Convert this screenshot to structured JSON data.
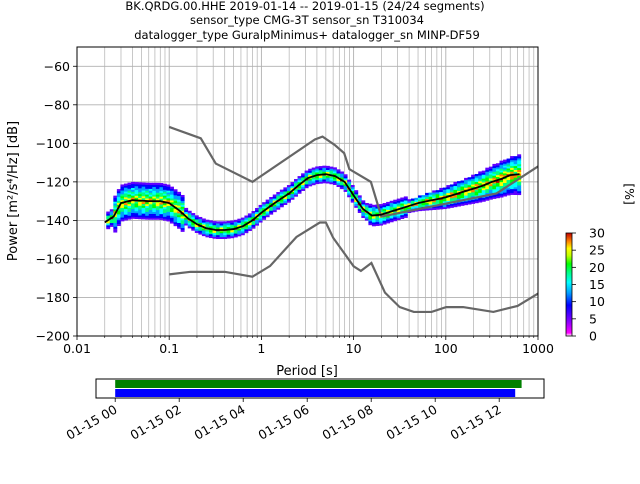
{
  "title_lines": [
    "BK.QRDG.00.HHE   2019-01-14 -- 2019-01-15  (24/24 segments)",
    "sensor_type CMG-3T sensor_sn T310034",
    "datalogger_type GuralpMinimus+ datalogger_sn MINP-DF59"
  ],
  "chart_data": {
    "type": "heatmap",
    "xlabel": "Period [s]",
    "ylabel": "Power [m²/s⁴/Hz] [dB]",
    "xscale": "log",
    "xlim": [
      0.01,
      1000
    ],
    "ylim": [
      -200,
      -50
    ],
    "x_ticks": [
      {
        "value": 0.01,
        "label": "0.01"
      },
      {
        "value": 0.1,
        "label": "0.1"
      },
      {
        "value": 1,
        "label": "1"
      },
      {
        "value": 10,
        "label": "10"
      },
      {
        "value": 100,
        "label": "100"
      },
      {
        "value": 1000,
        "label": "1000"
      }
    ],
    "y_ticks": [
      {
        "value": -60,
        "label": "−60"
      },
      {
        "value": -80,
        "label": "−80"
      },
      {
        "value": -100,
        "label": "−100"
      },
      {
        "value": -120,
        "label": "−120"
      },
      {
        "value": -140,
        "label": "−140"
      },
      {
        "value": -160,
        "label": "−160"
      },
      {
        "value": -180,
        "label": "−180"
      },
      {
        "value": -200,
        "label": "−200"
      }
    ],
    "grid": true,
    "noise_model_high": {
      "x": [
        0.1,
        0.22,
        0.32,
        0.8,
        3.8,
        4.6,
        6.3,
        7.9,
        9.0,
        15.4,
        20.0,
        354.8,
        1000
      ],
      "y": [
        -91.5,
        -97.4,
        -110.5,
        -120.0,
        -98.0,
        -96.5,
        -101.0,
        -105.1,
        -113.4,
        -120.0,
        -138.0,
        -126.0,
        -112.0
      ]
    },
    "noise_model_low": {
      "x": [
        0.1,
        0.17,
        0.4,
        0.8,
        1.24,
        2.4,
        4.3,
        5.0,
        6.0,
        10.0,
        12.0,
        15.6,
        21.9,
        31.6,
        45.0,
        70.0,
        101.0,
        154.0,
        328.0,
        600.0,
        1000.0
      ],
      "y": [
        -168.0,
        -166.7,
        -166.7,
        -169.2,
        -163.7,
        -148.6,
        -141.1,
        -141.1,
        -149.0,
        -163.8,
        -166.2,
        -162.1,
        -177.5,
        -185.0,
        -187.5,
        -187.5,
        -185.0,
        -185.0,
        -187.5,
        -184.4,
        -178.0
      ]
    },
    "mode_curve": {
      "x": [
        0.02,
        0.025,
        0.03,
        0.04,
        0.06,
        0.08,
        0.1,
        0.13,
        0.16,
        0.2,
        0.25,
        0.32,
        0.4,
        0.5,
        0.63,
        0.8,
        1.0,
        1.3,
        1.6,
        2.0,
        2.5,
        3.2,
        4.0,
        5.0,
        6.3,
        8.0,
        10.0,
        12.6,
        15.8,
        20.0,
        25.0,
        31.6,
        40.0,
        50.0,
        63.0,
        80.0,
        100.0,
        126.0,
        158.0,
        200.0,
        251.0,
        316.0,
        398.0,
        501.0,
        631.0
      ],
      "y": [
        -141.0,
        -138.0,
        -131.0,
        -129.5,
        -130.0,
        -130.0,
        -131.0,
        -135.0,
        -139.0,
        -142.0,
        -144.0,
        -145.0,
        -145.0,
        -144.5,
        -143.0,
        -140.0,
        -136.0,
        -132.0,
        -129.0,
        -126.0,
        -122.0,
        -118.0,
        -116.5,
        -116.0,
        -117.0,
        -120.0,
        -127.0,
        -134.0,
        -137.5,
        -137.0,
        -135.5,
        -134.0,
        -132.5,
        -131.0,
        -130.0,
        -129.0,
        -128.0,
        -126.5,
        -125.0,
        -123.5,
        -122.0,
        -120.0,
        -118.5,
        -116.5,
        -116.0
      ]
    },
    "colorbar": {
      "label": "[%]",
      "range": [
        0,
        30
      ],
      "ticks": [
        0,
        5,
        10,
        15,
        20,
        25,
        30
      ]
    },
    "coverage": {
      "x_ticks": [
        "01-15 00",
        "01-15 02",
        "01-15 04",
        "01-15 06",
        "01-15 08",
        "01-15 10",
        "01-15 12"
      ],
      "bars": [
        {
          "color": "#008000",
          "start_hours": 0.0,
          "end_hours": 12.7
        },
        {
          "color": "#0000ff",
          "start_hours": 0.0,
          "end_hours": 12.5
        }
      ],
      "xlim_hours": [
        -0.6,
        13.4
      ]
    }
  }
}
